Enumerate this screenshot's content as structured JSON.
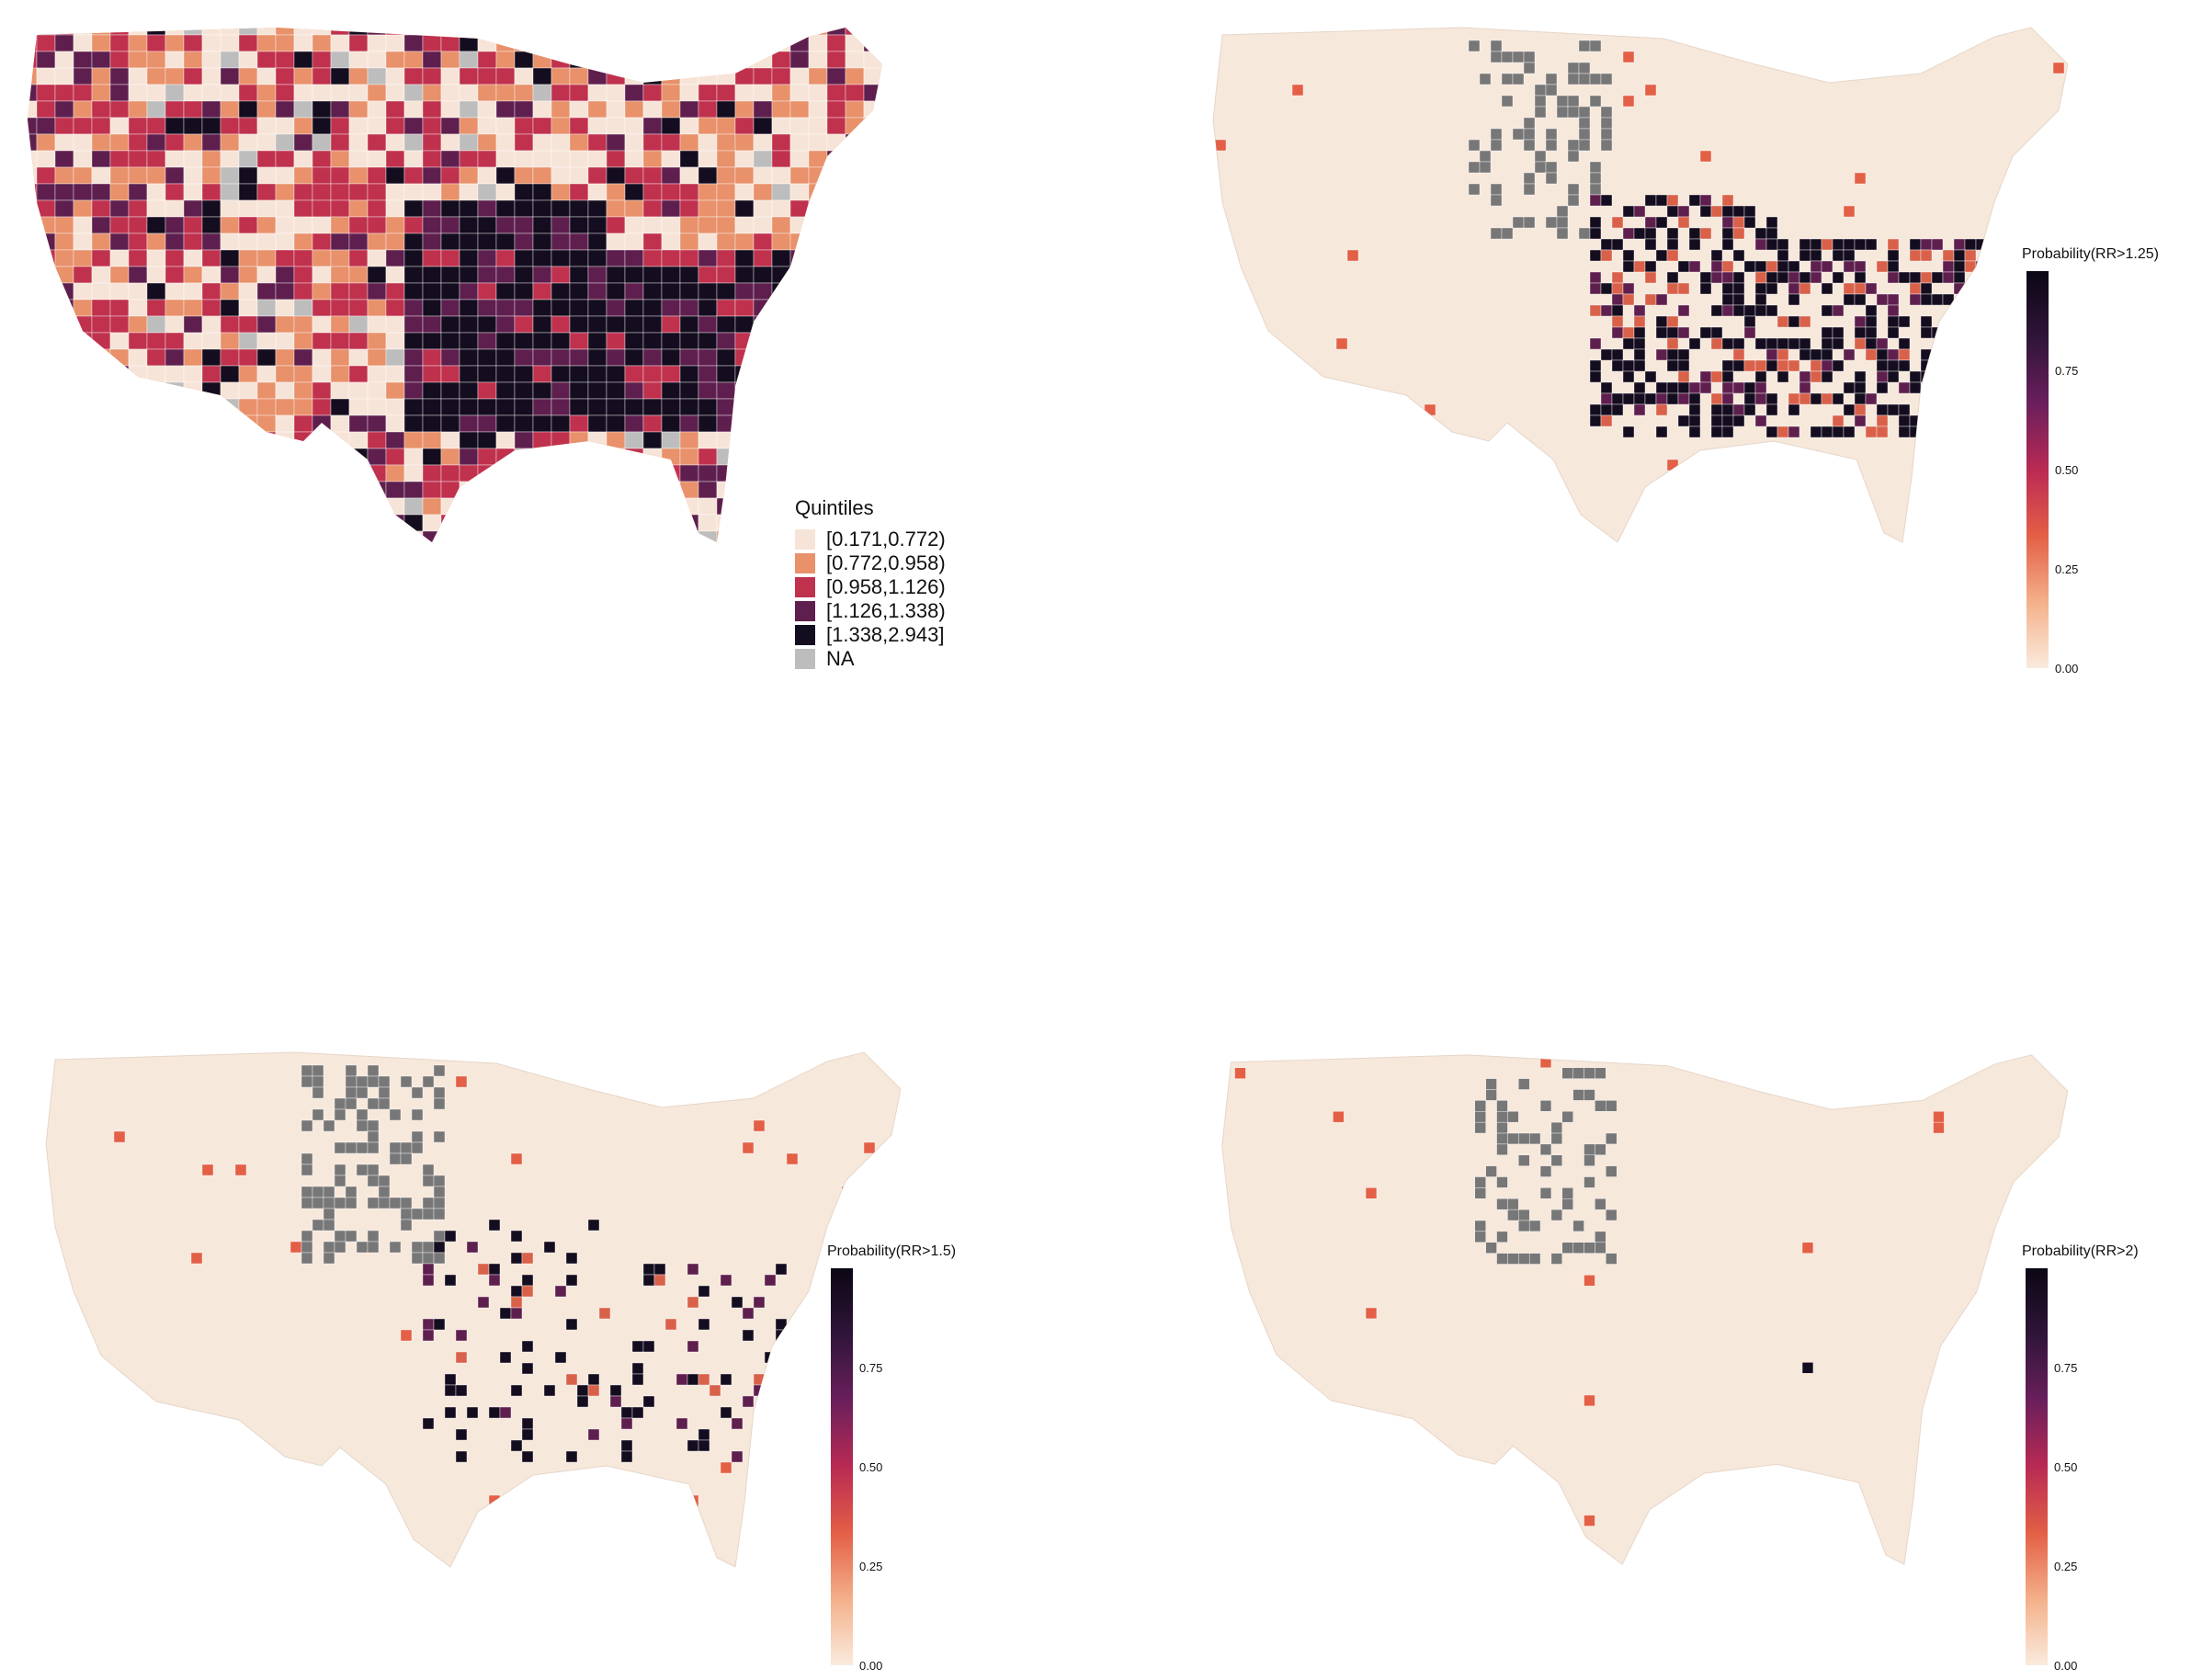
{
  "panels": [
    {
      "id": "rr_quintiles",
      "legend_type": "categorical",
      "legend_title": "Quintiles"
    },
    {
      "id": "prob_rr_gt_1_25",
      "legend_type": "continuous",
      "legend_title": "Probability(RR>1.25)"
    },
    {
      "id": "prob_rr_gt_1_5",
      "legend_type": "continuous",
      "legend_title": "Probability(RR>1.5)"
    },
    {
      "id": "prob_rr_gt_2",
      "legend_type": "continuous",
      "legend_title": "Probability(RR>2)"
    }
  ],
  "quintile_legend": {
    "title": "Quintiles",
    "items": [
      {
        "label": "[0.171,0.772)",
        "color": "#f7e4d8"
      },
      {
        "label": "[0.772,0.958)",
        "color": "#e8916b"
      },
      {
        "label": "[0.958,1.126)",
        "color": "#c0314e"
      },
      {
        "label": "[1.126,1.338)",
        "color": "#5e1f4e"
      },
      {
        "label": "[1.338,2.943]",
        "color": "#140d1f"
      },
      {
        "label": "NA",
        "color": "#bdbdbd"
      }
    ]
  },
  "colorbar": {
    "ticks": [
      "0.00",
      "0.25",
      "0.50",
      "0.75"
    ],
    "tick_values": [
      0,
      0.25,
      0.5,
      0.75
    ],
    "range": [
      0,
      1
    ],
    "colors": [
      "#faebdd",
      "#f4b08a",
      "#e35f46",
      "#b92a53",
      "#6a1f5c",
      "#2f1539",
      "#0b0713"
    ]
  },
  "probability_legends": [
    {
      "title": "Probability(RR>1.25)"
    },
    {
      "title": "Probability(RR>1.5)"
    },
    {
      "title": "Probability(RR>2)"
    }
  ],
  "colors": {
    "base": "#f7e8dc",
    "na": "#777777",
    "border": "#ffffff"
  }
}
